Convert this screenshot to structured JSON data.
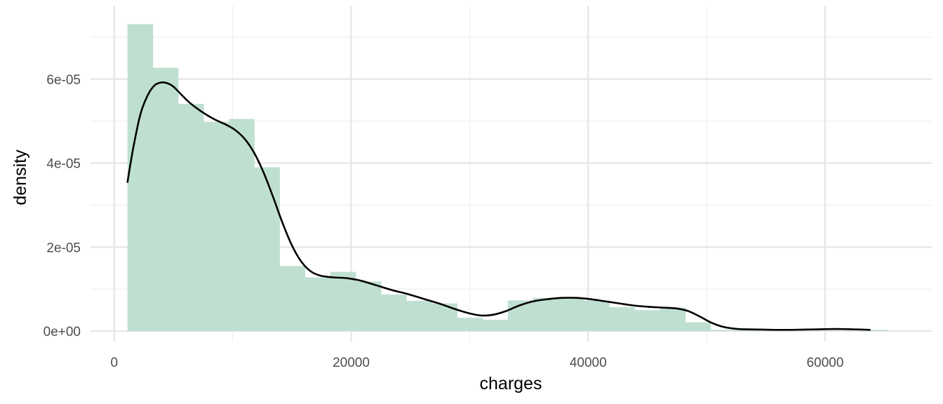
{
  "chart_data": {
    "type": "histogram",
    "xlabel": "charges",
    "ylabel": "density",
    "xlim": [
      -2000,
      69000
    ],
    "ylim": [
      -2.5e-06,
      7.75e-05
    ],
    "x_ticks": [
      0,
      20000,
      40000,
      60000
    ],
    "x_tick_labels": [
      "0",
      "20000",
      "40000",
      "60000"
    ],
    "y_ticks": [
      0,
      2e-05,
      4e-05,
      6e-05
    ],
    "y_tick_labels": [
      "0e+00",
      "2e-05",
      "4e-05",
      "6e-05"
    ],
    "grid": true,
    "bin_width": 2140,
    "bins": [
      {
        "x0": 1122,
        "x1": 3262,
        "density": 7.31e-05
      },
      {
        "x0": 3262,
        "x1": 5402,
        "density": 6.27e-05
      },
      {
        "x0": 5402,
        "x1": 7542,
        "density": 5.41e-05
      },
      {
        "x0": 7542,
        "x1": 9682,
        "density": 4.98e-05
      },
      {
        "x0": 9682,
        "x1": 11822,
        "density": 5.05e-05
      },
      {
        "x0": 11822,
        "x1": 13962,
        "density": 3.9e-05
      },
      {
        "x0": 13962,
        "x1": 16102,
        "density": 1.55e-05
      },
      {
        "x0": 16102,
        "x1": 18242,
        "density": 1.28e-05
      },
      {
        "x0": 18242,
        "x1": 20382,
        "density": 1.41e-05
      },
      {
        "x0": 20382,
        "x1": 22522,
        "density": 1.18e-05
      },
      {
        "x0": 22522,
        "x1": 24662,
        "density": 8.7e-06
      },
      {
        "x0": 24662,
        "x1": 26802,
        "density": 7.2e-06
      },
      {
        "x0": 26802,
        "x1": 28942,
        "density": 6.6e-06
      },
      {
        "x0": 28942,
        "x1": 31082,
        "density": 3.2e-06
      },
      {
        "x0": 31082,
        "x1": 33222,
        "density": 2.7e-06
      },
      {
        "x0": 33222,
        "x1": 35362,
        "density": 7.3e-06
      },
      {
        "x0": 35362,
        "x1": 37502,
        "density": 7.9e-06
      },
      {
        "x0": 37502,
        "x1": 39642,
        "density": 7.9e-06
      },
      {
        "x0": 39642,
        "x1": 41782,
        "density": 7.3e-06
      },
      {
        "x0": 41782,
        "x1": 43922,
        "density": 5.7e-06
      },
      {
        "x0": 43922,
        "x1": 46062,
        "density": 5e-06
      },
      {
        "x0": 46062,
        "x1": 48202,
        "density": 5.6e-06
      },
      {
        "x0": 48202,
        "x1": 50342,
        "density": 2.1e-06
      },
      {
        "x0": 50342,
        "x1": 52482,
        "density": 3e-07
      },
      {
        "x0": 52482,
        "x1": 54622,
        "density": 2e-07
      },
      {
        "x0": 54622,
        "x1": 56762,
        "density": 0.0
      },
      {
        "x0": 56762,
        "x1": 58902,
        "density": 0.0
      },
      {
        "x0": 58902,
        "x1": 61042,
        "density": 0.0
      },
      {
        "x0": 61042,
        "x1": 63182,
        "density": 0.0
      },
      {
        "x0": 63182,
        "x1": 65322,
        "density": 3e-07
      }
    ],
    "density_curve": {
      "x": [
        1122,
        1600,
        2200,
        2800,
        3400,
        4000,
        4500,
        5000,
        5600,
        6400,
        7400,
        8400,
        9400,
        10200,
        11000,
        11800,
        12600,
        13400,
        14200,
        15000,
        15800,
        16600,
        17400,
        18400,
        19600,
        20800,
        22000,
        23400,
        24800,
        26200,
        27600,
        28800,
        30000,
        31000,
        32000,
        33000,
        34200,
        35400,
        36600,
        37800,
        39000,
        40200,
        41400,
        42600,
        43800,
        45000,
        46200,
        47400,
        48400,
        49400,
        50400,
        51400,
        52600,
        54000,
        55600,
        57200,
        59000,
        61000,
        62600,
        63770
      ],
      "y": [
        3.55e-05,
        4.35e-05,
        5.15e-05,
        5.6e-05,
        5.85e-05,
        5.92e-05,
        5.9e-05,
        5.82e-05,
        5.65e-05,
        5.43e-05,
        5.22e-05,
        5.05e-05,
        4.92e-05,
        4.79e-05,
        4.58e-05,
        4.25e-05,
        3.78e-05,
        3.2e-05,
        2.58e-05,
        2.04e-05,
        1.65e-05,
        1.42e-05,
        1.32e-05,
        1.28e-05,
        1.26e-05,
        1.2e-05,
        1.1e-05,
        9.8e-06,
        8.8e-06,
        7.6e-06,
        6.4e-06,
        5.2e-06,
        4.2e-06,
        3.7e-06,
        3.9e-06,
        4.7e-06,
        6.1e-06,
        7.1e-06,
        7.6e-06,
        7.9e-06,
        7.9e-06,
        7.6e-06,
        7.1e-06,
        6.6e-06,
        6.1e-06,
        5.8e-06,
        5.6e-06,
        5.4e-06,
        4.8e-06,
        3.5e-06,
        2e-06,
        1e-06,
        5e-07,
        4e-07,
        3e-07,
        3e-07,
        4e-07,
        5e-07,
        4e-07,
        3e-07
      ]
    },
    "colors": {
      "bar_fill": "#bfe0d1",
      "curve": "#000000",
      "grid": "#e5e5e5",
      "background": "#ffffff"
    }
  }
}
